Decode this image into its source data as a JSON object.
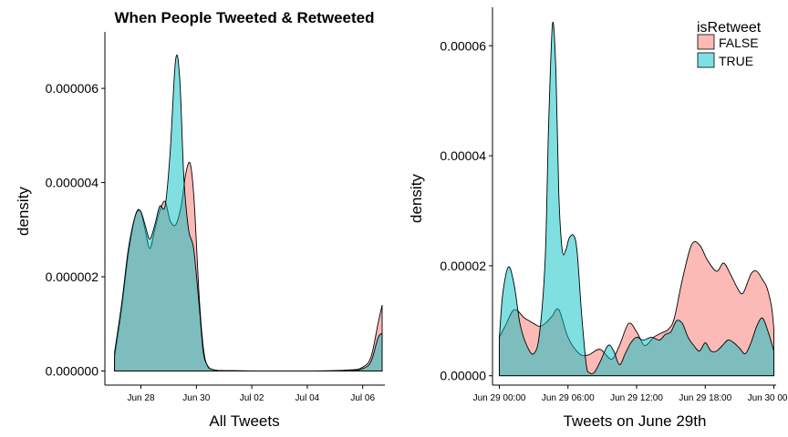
{
  "colors": {
    "FALSE": "#f8766d",
    "TRUE": "#00bfc4"
  },
  "legend": {
    "title": "isRetweet",
    "items": [
      {
        "label": "FALSE",
        "key": "FALSE"
      },
      {
        "label": "TRUE",
        "key": "TRUE"
      }
    ],
    "placement": "top-right"
  },
  "chart_data": [
    {
      "type": "area",
      "title": "When People Tweeted & Retweeted",
      "xlabel": "All Tweets",
      "ylabel": "density",
      "x_unit": "days from Jun 27 00:00",
      "xlim": [
        -0.3,
        9.8
      ],
      "ylim": [
        -3e-07,
        7.2e-06
      ],
      "x_ticks": [
        {
          "label": "Jun 28",
          "at": 1
        },
        {
          "label": "Jun 30",
          "at": 3
        },
        {
          "label": "Jul 02",
          "at": 5
        },
        {
          "label": "Jul 04",
          "at": 7
        },
        {
          "label": "Jul 06",
          "at": 9
        }
      ],
      "y_ticks": [
        {
          "label": "0.000000",
          "at": 0
        },
        {
          "label": "0.000002",
          "at": 2e-06
        },
        {
          "label": "0.000004",
          "at": 4e-06
        },
        {
          "label": "0.000006",
          "at": 6e-06
        }
      ],
      "series": [
        {
          "name": "FALSE",
          "x": [
            0.05,
            0.3,
            0.55,
            0.8,
            0.98,
            1.15,
            1.32,
            1.5,
            1.68,
            1.87,
            2.05,
            2.25,
            2.45,
            2.62,
            2.78,
            2.92,
            3.1,
            3.25,
            3.4,
            3.6,
            3.8,
            4.2,
            5,
            7,
            8.5,
            9,
            9.3,
            9.55,
            9.7
          ],
          "y": [
            3e-07,
            1.3e-06,
            2.5e-06,
            3.3e-06,
            3.4e-06,
            3e-06,
            2.6e-06,
            3e-06,
            3.4e-06,
            3.6e-06,
            3.2e-06,
            3.1e-06,
            3.5e-06,
            4.2e-06,
            4.4e-06,
            3.6e-06,
            1.6e-06,
            5e-07,
            1e-07,
            3e-08,
            1e-08,
            5e-09,
            0,
            0,
            2e-08,
            8e-08,
            3e-07,
            1e-06,
            1.4e-06
          ]
        },
        {
          "name": "TRUE",
          "x": [
            0.05,
            0.3,
            0.55,
            0.8,
            0.98,
            1.15,
            1.32,
            1.5,
            1.68,
            1.87,
            2.05,
            2.25,
            2.4,
            2.55,
            2.72,
            2.9,
            3.1,
            3.25,
            3.42,
            3.6,
            3.8,
            4.2,
            5,
            7,
            8.5,
            9,
            9.3,
            9.55,
            9.7
          ],
          "y": [
            4e-07,
            1.4e-06,
            2.6e-06,
            3.3e-06,
            3.4e-06,
            3.1e-06,
            2.8e-06,
            3.1e-06,
            3.5e-06,
            3.5e-06,
            4.6e-06,
            6.6e-06,
            6.2e-06,
            4.1e-06,
            3e-06,
            2.6e-06,
            1.4e-06,
            4e-07,
            1e-07,
            3e-08,
            1e-08,
            5e-09,
            0,
            0,
            1e-08,
            5e-08,
            2e-07,
            7e-07,
            8e-07
          ]
        }
      ]
    },
    {
      "type": "area",
      "title": "",
      "xlabel": "Tweets on June 29th",
      "ylabel": "density",
      "x_unit": "hours from Jun 29 00:00",
      "xlim": [
        -0.6,
        24.2
      ],
      "ylim": [
        -1.7e-06,
        6.7e-05
      ],
      "x_ticks": [
        {
          "label": "Jun 29 00:00",
          "at": 0
        },
        {
          "label": "Jun 29 06:00",
          "at": 6
        },
        {
          "label": "Jun 29 12:00",
          "at": 12
        },
        {
          "label": "Jun 29 18:00",
          "at": 18
        },
        {
          "label": "Jun 30 00:00",
          "at": 24
        }
      ],
      "y_ticks": [
        {
          "label": "0.00000",
          "at": 0
        },
        {
          "label": "0.00002",
          "at": 2e-05
        },
        {
          "label": "0.00004",
          "at": 4e-05
        },
        {
          "label": "0.00006",
          "at": 6e-05
        }
      ],
      "series": [
        {
          "name": "FALSE",
          "x": [
            0,
            0.5,
            1.3,
            2.2,
            3,
            3.5,
            4,
            4.6,
            5.2,
            6,
            7,
            7.8,
            8.8,
            9.8,
            10.5,
            11.3,
            12,
            12.7,
            13.5,
            14.2,
            14.8,
            15.3,
            16,
            16.8,
            17.5,
            18.2,
            19,
            19.6,
            20.2,
            20.8,
            21.3,
            22,
            22.5,
            23,
            23.4,
            23.8,
            24
          ],
          "y": [
            7e-06,
            9e-06,
            1.2e-05,
            1.05e-05,
            9.5e-06,
            9e-06,
            9.5e-06,
            1.08e-05,
            1.2e-05,
            7e-06,
            4e-06,
            3.8e-06,
            4.8e-06,
            3e-06,
            5.5e-06,
            9.5e-06,
            8e-06,
            5.5e-06,
            7e-06,
            7.8e-06,
            8.5e-06,
            1.05e-05,
            1.75e-05,
            2.38e-05,
            2.38e-05,
            2.1e-05,
            1.9e-05,
            2.05e-05,
            1.85e-05,
            1.6e-05,
            1.5e-05,
            1.85e-05,
            1.9e-05,
            1.75e-05,
            1.6e-05,
            1.25e-05,
            8.5e-06
          ]
        },
        {
          "name": "TRUE",
          "x": [
            0,
            0.3,
            0.8,
            1.3,
            1.8,
            2.4,
            3,
            3.5,
            4,
            4.3,
            4.65,
            4.95,
            5.2,
            5.5,
            5.8,
            6.1,
            6.5,
            6.8,
            7.2,
            7.6,
            7.9,
            8.3,
            8.8,
            9.5,
            10,
            10.5,
            11,
            11.5,
            12,
            12.6,
            13.3,
            14,
            14.5,
            15,
            15.5,
            16,
            16.5,
            17,
            17.5,
            18,
            18.5,
            19,
            19.5,
            20,
            20.5,
            21,
            21.5,
            22,
            22.5,
            23,
            23.5,
            24
          ],
          "y": [
            7e-06,
            1.5e-05,
            1.98e-05,
            1.65e-05,
            9.5e-06,
            5.5e-06,
            4e-06,
            7.5e-06,
            2.1e-05,
            4.5e-05,
            6.4e-05,
            5.5e-05,
            3.3e-05,
            2.28e-05,
            2.28e-05,
            2.5e-05,
            2.55e-05,
            2.25e-05,
            1.1e-05,
            2e-06,
            5e-07,
            6e-07,
            2.5e-06,
            5.5e-06,
            4.5e-06,
            2e-06,
            4e-06,
            6e-06,
            7e-06,
            6.5e-06,
            7e-06,
            6.5e-06,
            7.5e-06,
            8e-06,
            1e-05,
            9.5e-06,
            7e-06,
            5.5e-06,
            4.5e-06,
            6e-06,
            4.5e-06,
            4.5e-06,
            5.5e-06,
            6.5e-06,
            6e-06,
            5e-06,
            4e-06,
            6e-06,
            9e-06,
            1.05e-05,
            8e-06,
            4.5e-06
          ]
        }
      ]
    }
  ]
}
